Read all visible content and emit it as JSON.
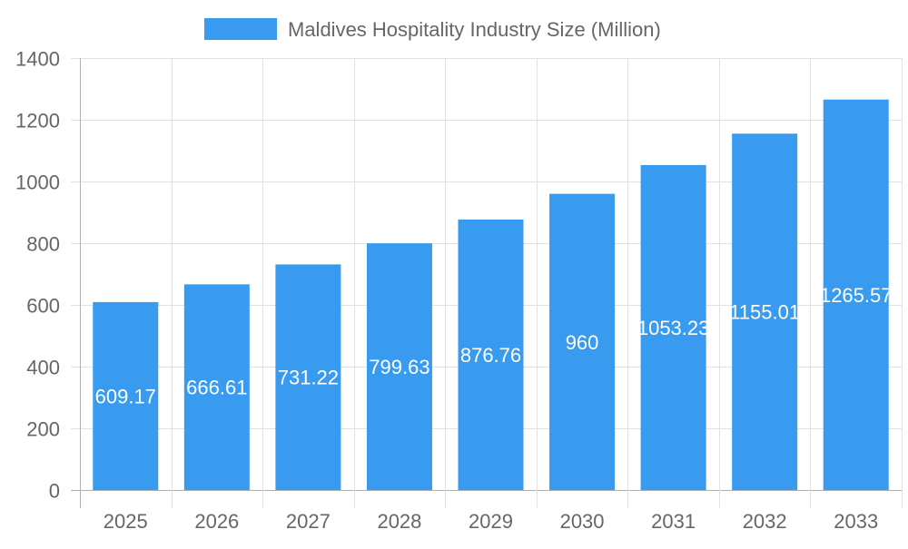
{
  "chart_data": {
    "type": "bar",
    "title": "",
    "xlabel": "",
    "ylabel": "",
    "categories": [
      "2025",
      "2026",
      "2027",
      "2028",
      "2029",
      "2030",
      "2031",
      "2032",
      "2033"
    ],
    "series": [
      {
        "name": "Maldives Hospitality Industry Size (Million)",
        "values": [
          609.17,
          666.61,
          731.22,
          799.63,
          876.76,
          960,
          1053.23,
          1155.01,
          1265.57
        ],
        "color": "#389bef"
      }
    ],
    "ylim": [
      0,
      1400
    ],
    "yticks": [
      0,
      200,
      400,
      600,
      800,
      1000,
      1200,
      1400
    ],
    "grid": true,
    "legend": "top-center",
    "data_labels": true,
    "colors": {
      "grid": "#e1e1e1",
      "axis": "#b0b0b0",
      "tick_text": "#666666",
      "data_label": "#ffffff"
    }
  }
}
